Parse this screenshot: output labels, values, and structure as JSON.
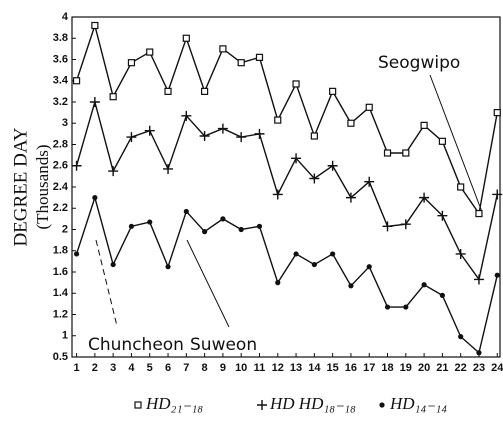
{
  "chart_data": {
    "type": "line",
    "ylabel": "DEGREE DAY",
    "ylabel2": "(Thousands)",
    "x": [
      1,
      2,
      3,
      4,
      5,
      6,
      7,
      8,
      9,
      10,
      11,
      12,
      13,
      14,
      15,
      16,
      17,
      18,
      19,
      20,
      21,
      22,
      23,
      24
    ],
    "xlim": [
      0.75,
      24.15
    ],
    "xticks": [
      1,
      2,
      3,
      4,
      5,
      6,
      7,
      8,
      9,
      10,
      11,
      12,
      13,
      14,
      15,
      16,
      17,
      18,
      19,
      20,
      21,
      22,
      23,
      24
    ],
    "ylim": [
      0.5,
      4
    ],
    "yticks": [
      0.5,
      1,
      1.2,
      1.4,
      1.6,
      1.8,
      2,
      2.2,
      2.4,
      2.6,
      2.8,
      3,
      3.2,
      3.4,
      3.6,
      3.8,
      4
    ],
    "annotations": [
      "Seogwipo",
      "Chuncheon",
      "Suweon"
    ],
    "series": [
      {
        "name": "HD₂₁₋₁₈",
        "marker": "square",
        "color": "#111111",
        "values": [
          3.4,
          3.92,
          3.25,
          3.57,
          3.67,
          3.3,
          3.8,
          3.3,
          3.7,
          3.57,
          3.62,
          3.03,
          3.37,
          2.88,
          3.3,
          3.0,
          3.15,
          2.72,
          2.72,
          2.98,
          2.83,
          2.4,
          2.15,
          3.1
        ]
      },
      {
        "name": "HD HD₁₈₋₁₈",
        "marker": "plus",
        "color": "#111111",
        "values": [
          2.6,
          3.2,
          2.55,
          2.87,
          2.93,
          2.57,
          3.07,
          2.88,
          2.95,
          2.87,
          2.9,
          2.33,
          2.67,
          2.48,
          2.6,
          2.3,
          2.45,
          2.03,
          2.05,
          2.3,
          2.13,
          1.77,
          1.53,
          2.33
        ]
      },
      {
        "name": "HD₁₄₋₁₄",
        "marker": "dot",
        "color": "#111111",
        "values": [
          1.77,
          2.3,
          1.67,
          2.03,
          2.07,
          1.65,
          2.17,
          1.98,
          2.1,
          2.0,
          2.03,
          1.5,
          1.77,
          1.67,
          1.77,
          1.47,
          1.65,
          1.27,
          1.27,
          1.48,
          1.38,
          0.98,
          0.6,
          1.57
        ]
      }
    ]
  }
}
